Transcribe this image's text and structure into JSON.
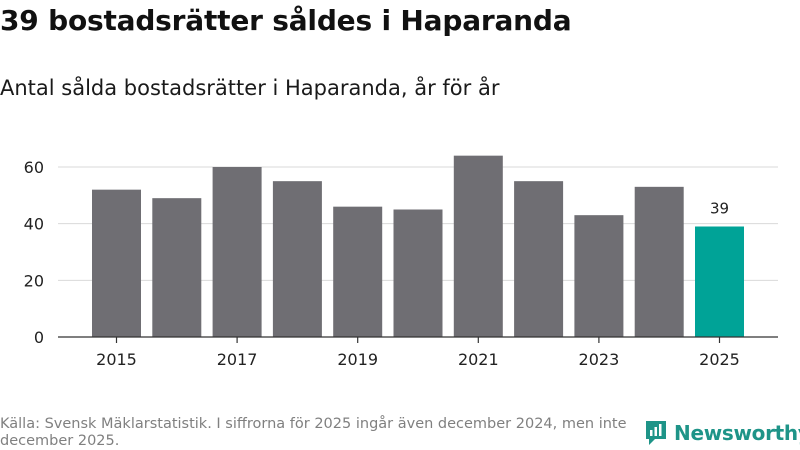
{
  "title": "39 bostadsrätter såldes i Haparanda",
  "subtitle": "Antal sålda bostadsrätter i Haparanda, år för år",
  "footer": {
    "source": "Källa: Svensk Mäklarstatistik. I siffrorna för 2025 ingår även december 2024, men inte december 2025.",
    "logo_text": "Newsworthy"
  },
  "colors": {
    "bar": "#6f6e73",
    "highlight": "#00a397",
    "grid": "#d9d9d9",
    "axis": "#333333",
    "brand": "#1e9488"
  },
  "chart_data": {
    "type": "bar",
    "title": "Antal sålda bostadsrätter i Haparanda, år för år",
    "xlabel": "",
    "ylabel": "",
    "categories": [
      "2015",
      "2016",
      "2017",
      "2018",
      "2019",
      "2020",
      "2021",
      "2022",
      "2023",
      "2024",
      "2025"
    ],
    "values": [
      52,
      49,
      60,
      55,
      46,
      45,
      64,
      55,
      43,
      53,
      39
    ],
    "x_tick_labels": [
      "2015",
      "2017",
      "2019",
      "2021",
      "2023",
      "2025"
    ],
    "yticks": [
      0,
      20,
      40,
      60
    ],
    "ylim": [
      0,
      65
    ],
    "highlight_category": "2025",
    "data_labels": [
      {
        "category": "2025",
        "text": "39"
      }
    ],
    "grid": true
  }
}
